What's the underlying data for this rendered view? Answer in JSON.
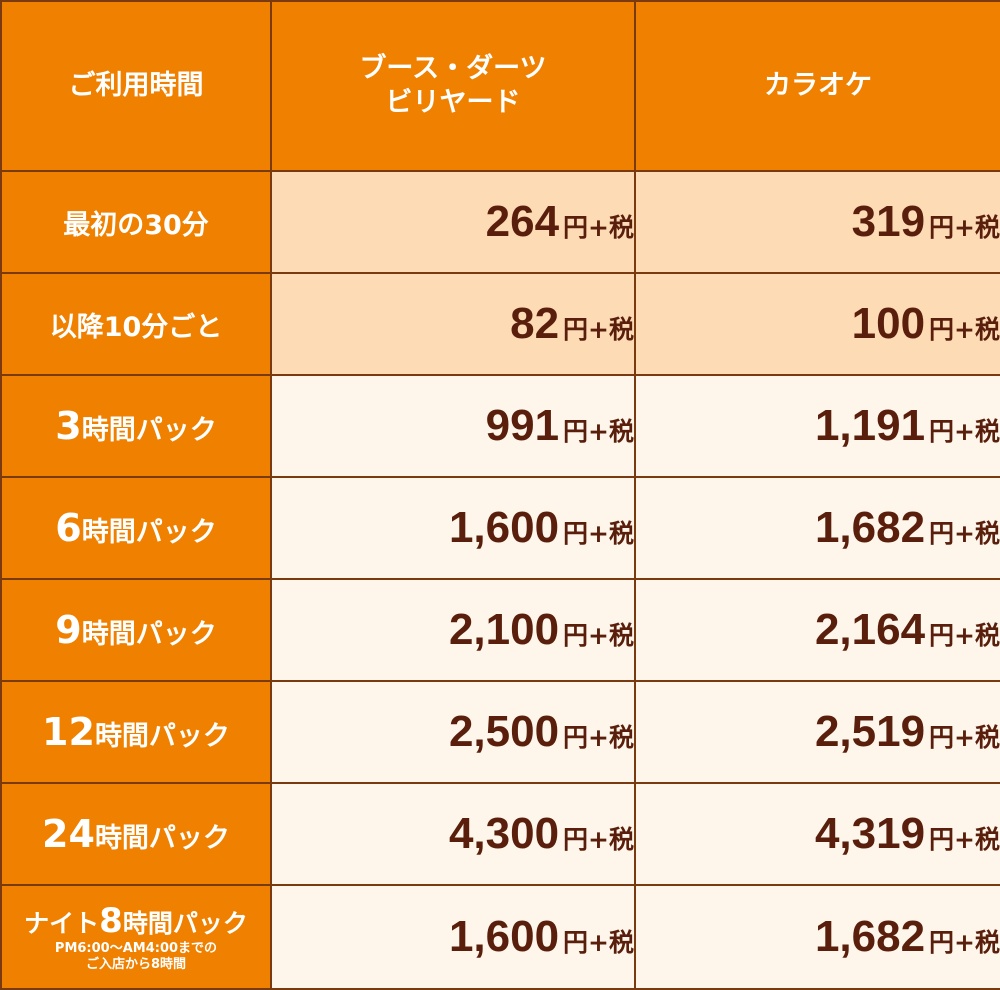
{
  "header": {
    "col1": "ご利用時間",
    "col2_line1": "ブース・ダーツ",
    "col2_line2": "ビリヤード",
    "col3": "カラオケ"
  },
  "unit": "円+税",
  "rows": [
    {
      "label": "最初の30分",
      "booth": "264",
      "karaoke": "319"
    },
    {
      "label": "以降10分ごと",
      "booth": "82",
      "karaoke": "100"
    },
    {
      "label_num": "3",
      "label_text": "時間パック",
      "booth": "991",
      "karaoke": "1,191"
    },
    {
      "label_num": "6",
      "label_text": "時間パック",
      "booth": "1,600",
      "karaoke": "1,682"
    },
    {
      "label_num": "9",
      "label_text": "時間パック",
      "booth": "2,100",
      "karaoke": "2,164"
    },
    {
      "label_num": "12",
      "label_text": "時間パック",
      "booth": "2,500",
      "karaoke": "2,519"
    },
    {
      "label_num": "24",
      "label_text": "時間パック",
      "booth": "4,300",
      "karaoke": "4,319"
    },
    {
      "label_pre": "ナイト",
      "label_num": "8",
      "label_text": "時間パック",
      "note_line1": "PM6:00～AM4:00までの",
      "note_line2": "ご入店から8時間",
      "booth": "1,600",
      "karaoke": "1,682"
    }
  ]
}
